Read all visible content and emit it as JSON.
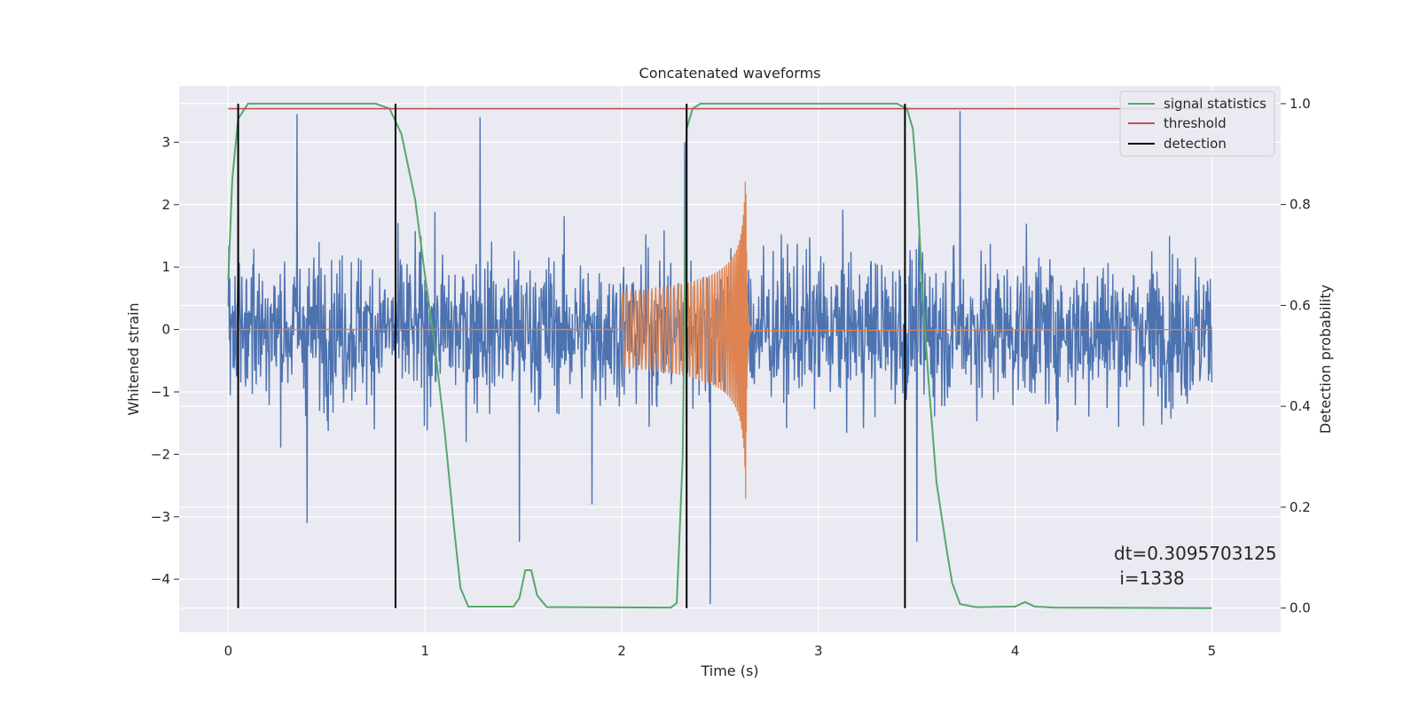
{
  "chart_data": {
    "type": "line",
    "title": "Concatenated waveforms",
    "xlabel": "Time (s)",
    "ylabel": "Whitened strain",
    "y2label": "Detection probability",
    "xlim": [
      -0.25,
      5.35
    ],
    "ylim": [
      -4.85,
      3.9
    ],
    "y2lim": [
      -0.048,
      1.035
    ],
    "xticks": [
      "0",
      "1",
      "2",
      "3",
      "4",
      "5"
    ],
    "yticks": [
      "−4",
      "−3",
      "−2",
      "−1",
      "0",
      "1",
      "2",
      "3"
    ],
    "y2ticks": [
      "0.0",
      "0.2",
      "0.4",
      "0.6",
      "0.8",
      "1.0"
    ],
    "grid": true,
    "legend_position": "top-right",
    "series": [
      {
        "name": "",
        "axis": "left",
        "kind": "noise",
        "color": "#4c72b0",
        "x_range": [
          0,
          5
        ],
        "samples": 2048,
        "typical_envelope": 2.3,
        "peaks": [
          [
            0.35,
            3.45
          ],
          [
            1.28,
            3.4
          ],
          [
            1.48,
            -3.4
          ],
          [
            2.32,
            3.0
          ],
          [
            2.45,
            -4.4
          ],
          [
            3.72,
            3.5
          ],
          [
            3.5,
            -3.4
          ],
          [
            1.85,
            -2.8
          ],
          [
            0.4,
            -3.1
          ]
        ]
      },
      {
        "name": "",
        "axis": "left",
        "kind": "chirp",
        "color": "#dd8452",
        "x_range": [
          0,
          5
        ],
        "chirp_start": 2.0,
        "chirp_merger": 2.63,
        "chirp_end": 2.66,
        "start_amplitude": 0.6,
        "peak_amplitude": 2.8
      },
      {
        "name": "signal statistics",
        "axis": "right",
        "kind": "line",
        "color": "#55a868",
        "points": [
          [
            0,
            0.65
          ],
          [
            0.02,
            0.85
          ],
          [
            0.05,
            0.97
          ],
          [
            0.1,
            1.0
          ],
          [
            0.75,
            1.0
          ],
          [
            0.82,
            0.99
          ],
          [
            0.88,
            0.94
          ],
          [
            0.95,
            0.81
          ],
          [
            1.0,
            0.66
          ],
          [
            1.05,
            0.52
          ],
          [
            1.1,
            0.35
          ],
          [
            1.15,
            0.15
          ],
          [
            1.18,
            0.04
          ],
          [
            1.22,
            0.003
          ],
          [
            1.45,
            0.003
          ],
          [
            1.48,
            0.02
          ],
          [
            1.51,
            0.075
          ],
          [
            1.54,
            0.075
          ],
          [
            1.57,
            0.025
          ],
          [
            1.62,
            0.002
          ],
          [
            2.25,
            0.001
          ],
          [
            2.28,
            0.01
          ],
          [
            2.31,
            0.3
          ],
          [
            2.33,
            0.95
          ],
          [
            2.36,
            0.99
          ],
          [
            2.4,
            1.0
          ],
          [
            3.4,
            1.0
          ],
          [
            3.45,
            0.99
          ],
          [
            3.48,
            0.95
          ],
          [
            3.5,
            0.85
          ],
          [
            3.53,
            0.62
          ],
          [
            3.56,
            0.45
          ],
          [
            3.6,
            0.25
          ],
          [
            3.65,
            0.12
          ],
          [
            3.68,
            0.05
          ],
          [
            3.72,
            0.008
          ],
          [
            3.8,
            0.002
          ],
          [
            4.0,
            0.003
          ],
          [
            4.05,
            0.012
          ],
          [
            4.1,
            0.003
          ],
          [
            4.2,
            0.001
          ],
          [
            5.0,
            0.0
          ]
        ]
      },
      {
        "name": "threshold",
        "axis": "right",
        "kind": "hline",
        "color": "#c44e52",
        "x_range": [
          0,
          5
        ],
        "y": 0.99
      },
      {
        "name": "detection",
        "axis": "right",
        "kind": "vlines",
        "color": "#000000",
        "x": [
          0.05,
          0.85,
          2.33,
          3.44
        ],
        "y_range": [
          0,
          1.0
        ]
      }
    ],
    "annotation": {
      "line1": "dt=0.3095703125",
      "line2": " i=1338"
    }
  }
}
